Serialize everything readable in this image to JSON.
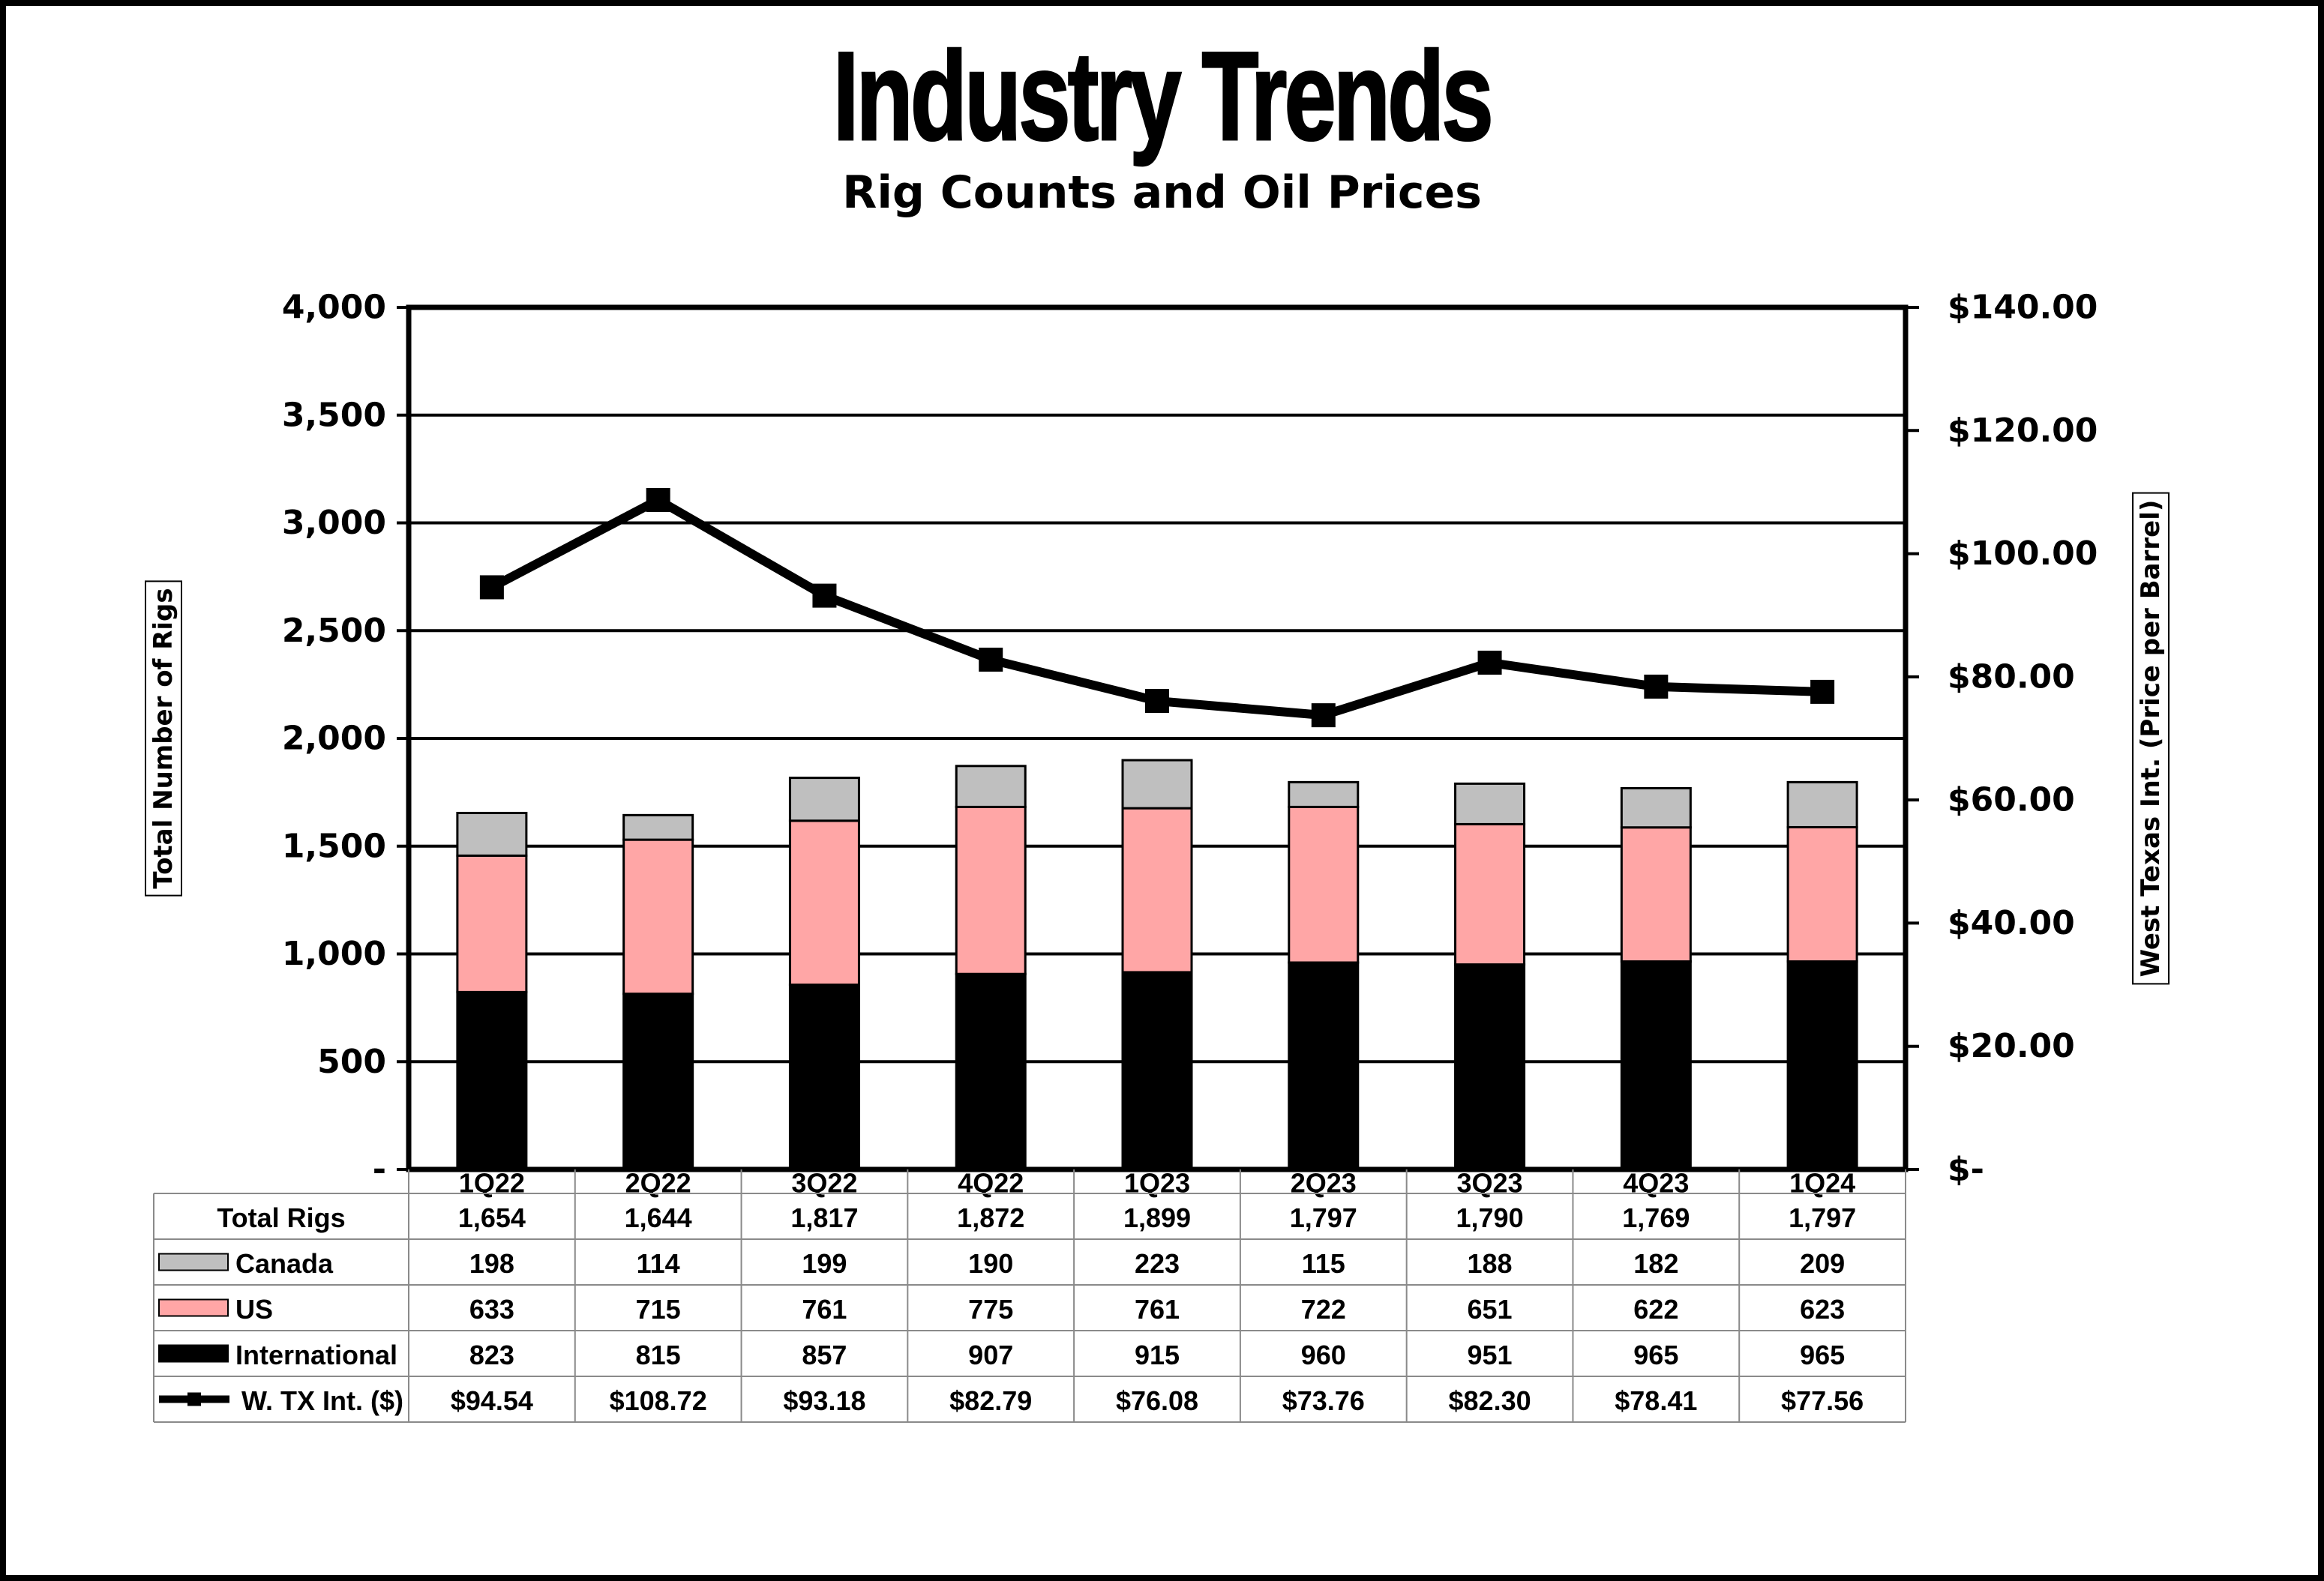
{
  "colors": {
    "canada": "#bfbfbf",
    "us": "#ffa6a6",
    "international": "#000000",
    "wti": "#000000",
    "grid": "#000000"
  },
  "chart_data": {
    "type": "bar",
    "title": "Industry Trends",
    "subtitle": "Rig Counts and Oil Prices",
    "categories": [
      "1Q22",
      "2Q22",
      "3Q22",
      "4Q22",
      "1Q23",
      "2Q23",
      "3Q23",
      "4Q23",
      "1Q24"
    ],
    "stacked": true,
    "ylabel": "Total Number of Rigs",
    "y2label": "West Texas Int. (Price per Barrel)",
    "ylim": [
      0,
      4000
    ],
    "y2lim": [
      0,
      140
    ],
    "yticks": [
      "-",
      "500",
      "1,000",
      "1,500",
      "2,000",
      "2,500",
      "3,000",
      "3,500",
      "4,000"
    ],
    "y2ticks": [
      "$-",
      "$20.00",
      "$40.00",
      "$60.00",
      "$80.00",
      "$100.00",
      "$120.00",
      "$140.00"
    ],
    "grid": true,
    "totals": {
      "label": "Total Rigs",
      "values": [
        1654,
        1644,
        1817,
        1872,
        1899,
        1797,
        1790,
        1769,
        1797
      ],
      "display": [
        "1,654",
        "1,644",
        "1,817",
        "1,872",
        "1,899",
        "1,797",
        "1,790",
        "1,769",
        "1,797"
      ]
    },
    "series": [
      {
        "name": "Canada",
        "type": "bar",
        "values": [
          198,
          114,
          199,
          190,
          223,
          115,
          188,
          182,
          209
        ],
        "display": [
          "198",
          "114",
          "199",
          "190",
          "223",
          "115",
          "188",
          "182",
          "209"
        ]
      },
      {
        "name": "US",
        "type": "bar",
        "values": [
          633,
          715,
          761,
          775,
          761,
          722,
          651,
          622,
          623
        ],
        "display": [
          "633",
          "715",
          "761",
          "775",
          "761",
          "722",
          "651",
          "622",
          "623"
        ]
      },
      {
        "name": "International",
        "type": "bar",
        "values": [
          823,
          815,
          857,
          907,
          915,
          960,
          951,
          965,
          965
        ],
        "display": [
          "823",
          "815",
          "857",
          "907",
          "915",
          "960",
          "951",
          "965",
          "965"
        ]
      },
      {
        "name": "W. TX Int. ($)",
        "type": "line",
        "axis": "right",
        "values": [
          94.54,
          108.72,
          93.18,
          82.79,
          76.08,
          73.76,
          82.3,
          78.41,
          77.56
        ],
        "display": [
          "$94.54",
          "$108.72",
          "$93.18",
          "$82.79",
          "$76.08",
          "$73.76",
          "$82.30",
          "$78.41",
          "$77.56"
        ]
      }
    ]
  }
}
